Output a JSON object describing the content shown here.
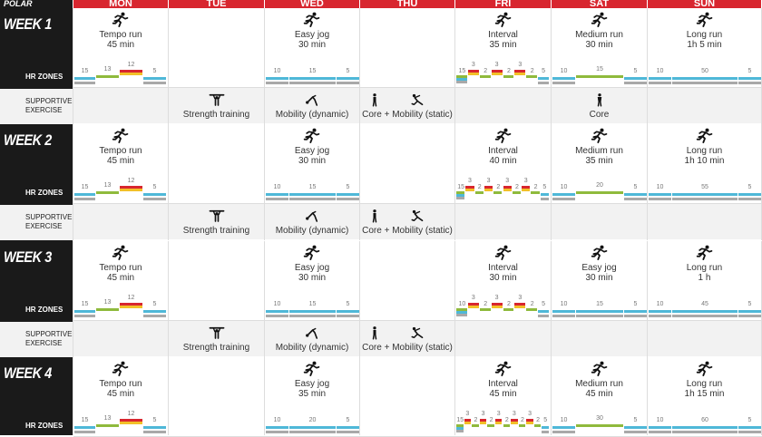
{
  "brand": "POLAR",
  "days": [
    "MON",
    "TUE",
    "WED",
    "THU",
    "FRI",
    "SAT",
    "SUN"
  ],
  "labels": {
    "hr_zones": "HR ZONES",
    "supportive": [
      "SUPPORTIVE",
      "EXERCISE"
    ]
  },
  "colors": {
    "header": "#d8262f",
    "sidebar": "#1a1a1a",
    "zone1": "#a9a9a9",
    "zone2": "#4fb8d8",
    "zone3": "#8fba3c",
    "zone4": "#f2c028",
    "zone5": "#d8262f"
  },
  "weeks": [
    {
      "label": "WEEK 1",
      "runs": [
        {
          "day": 0,
          "name": "Tempo run",
          "dur": "45 min",
          "zones": [
            [
              "15",
              2
            ],
            [
              "13",
              3
            ],
            [
              "12",
              4
            ],
            [
              "5",
              2
            ]
          ]
        },
        {
          "day": 2,
          "name": "Easy jog",
          "dur": "30 min",
          "zones": [
            [
              "10",
              2
            ],
            [
              "15",
              2
            ],
            [
              "5",
              2
            ]
          ]
        },
        {
          "day": 4,
          "name": "Interval",
          "dur": "35 min",
          "interval": {
            "warm": "15",
            "reps": [
              [
                "3",
                "2"
              ],
              [
                "3",
                "2"
              ],
              [
                "3",
                "2"
              ]
            ],
            "cool": "5"
          }
        },
        {
          "day": 5,
          "name": "Medium run",
          "dur": "30 min",
          "zones": [
            [
              "10",
              2
            ],
            [
              "15",
              3
            ],
            [
              "5",
              2
            ]
          ]
        },
        {
          "day": 6,
          "name": "Long run",
          "dur": "1h 5 min",
          "zones": [
            [
              "10",
              2
            ],
            [
              "50",
              2
            ],
            [
              "5",
              2
            ]
          ]
        }
      ],
      "support": [
        {
          "day": 1,
          "name": "Strength training",
          "icon": "strength-icon"
        },
        {
          "day": 2,
          "name": "Mobility (dynamic)",
          "icon": "mobility-dynamic-icon"
        },
        {
          "day": 3,
          "name": "Core + Mobility (static)",
          "icon": "core-mobility-icon"
        },
        {
          "day": 5,
          "name": "Core",
          "icon": "core-icon"
        }
      ]
    },
    {
      "label": "WEEK 2",
      "runs": [
        {
          "day": 0,
          "name": "Tempo run",
          "dur": "45 min",
          "zones": [
            [
              "15",
              2
            ],
            [
              "13",
              3
            ],
            [
              "12",
              4
            ],
            [
              "5",
              2
            ]
          ]
        },
        {
          "day": 2,
          "name": "Easy jog",
          "dur": "30 min",
          "zones": [
            [
              "10",
              2
            ],
            [
              "15",
              2
            ],
            [
              "5",
              2
            ]
          ]
        },
        {
          "day": 4,
          "name": "Interval",
          "dur": "40 min",
          "interval": {
            "warm": "15",
            "reps": [
              [
                "3",
                "2"
              ],
              [
                "3",
                "2"
              ],
              [
                "3",
                "2"
              ],
              [
                "3",
                "2"
              ]
            ],
            "cool": "5"
          }
        },
        {
          "day": 5,
          "name": "Medium run",
          "dur": "35 min",
          "zones": [
            [
              "10",
              2
            ],
            [
              "20",
              3
            ],
            [
              "5",
              2
            ]
          ]
        },
        {
          "day": 6,
          "name": "Long run",
          "dur": "1h 10 min",
          "zones": [
            [
              "10",
              2
            ],
            [
              "55",
              2
            ],
            [
              "5",
              2
            ]
          ]
        }
      ],
      "support": [
        {
          "day": 1,
          "name": "Strength training",
          "icon": "strength-icon"
        },
        {
          "day": 2,
          "name": "Mobility (dynamic)",
          "icon": "mobility-dynamic-icon"
        },
        {
          "day": 3,
          "name": "Core + Mobility (static)",
          "icon": "core-mobility-icon"
        }
      ]
    },
    {
      "label": "WEEK 3",
      "runs": [
        {
          "day": 0,
          "name": "Tempo run",
          "dur": "45 min",
          "zones": [
            [
              "15",
              2
            ],
            [
              "13",
              3
            ],
            [
              "12",
              4
            ],
            [
              "5",
              2
            ]
          ]
        },
        {
          "day": 2,
          "name": "Easy jog",
          "dur": "30 min",
          "zones": [
            [
              "10",
              2
            ],
            [
              "15",
              2
            ],
            [
              "5",
              2
            ]
          ]
        },
        {
          "day": 4,
          "name": "Interval",
          "dur": "30 min",
          "interval": {
            "warm": "10",
            "reps": [
              [
                "3",
                "2"
              ],
              [
                "3",
                "2"
              ],
              [
                "3",
                "2"
              ]
            ],
            "cool": "5"
          }
        },
        {
          "day": 5,
          "name": "Easy jog",
          "dur": "30 min",
          "zones": [
            [
              "10",
              2
            ],
            [
              "15",
              2
            ],
            [
              "5",
              2
            ]
          ]
        },
        {
          "day": 6,
          "name": "Long run",
          "dur": "1 h",
          "zones": [
            [
              "10",
              2
            ],
            [
              "45",
              2
            ],
            [
              "5",
              2
            ]
          ]
        }
      ],
      "support": [
        {
          "day": 1,
          "name": "Strength training",
          "icon": "strength-icon"
        },
        {
          "day": 2,
          "name": "Mobility (dynamic)",
          "icon": "mobility-dynamic-icon"
        },
        {
          "day": 3,
          "name": "Core + Mobility (static)",
          "icon": "core-mobility-icon"
        }
      ]
    },
    {
      "label": "WEEK 4",
      "runs": [
        {
          "day": 0,
          "name": "Tempo run",
          "dur": "45 min",
          "zones": [
            [
              "15",
              2
            ],
            [
              "13",
              3
            ],
            [
              "12",
              4
            ],
            [
              "5",
              2
            ]
          ]
        },
        {
          "day": 2,
          "name": "Easy jog",
          "dur": "35 min",
          "zones": [
            [
              "10",
              2
            ],
            [
              "20",
              2
            ],
            [
              "5",
              2
            ]
          ]
        },
        {
          "day": 4,
          "name": "Interval",
          "dur": "45 min",
          "interval": {
            "warm": "15",
            "reps": [
              [
                "3",
                "2"
              ],
              [
                "3",
                "2"
              ],
              [
                "3",
                "2"
              ],
              [
                "3",
                "2"
              ],
              [
                "3",
                "2"
              ]
            ],
            "cool": "5"
          }
        },
        {
          "day": 5,
          "name": "Medium run",
          "dur": "45 min",
          "zones": [
            [
              "10",
              2
            ],
            [
              "30",
              3
            ],
            [
              "5",
              2
            ]
          ]
        },
        {
          "day": 6,
          "name": "Long run",
          "dur": "1h 15 min",
          "zones": [
            [
              "10",
              2
            ],
            [
              "60",
              2
            ],
            [
              "5",
              2
            ]
          ]
        }
      ],
      "support": []
    }
  ]
}
